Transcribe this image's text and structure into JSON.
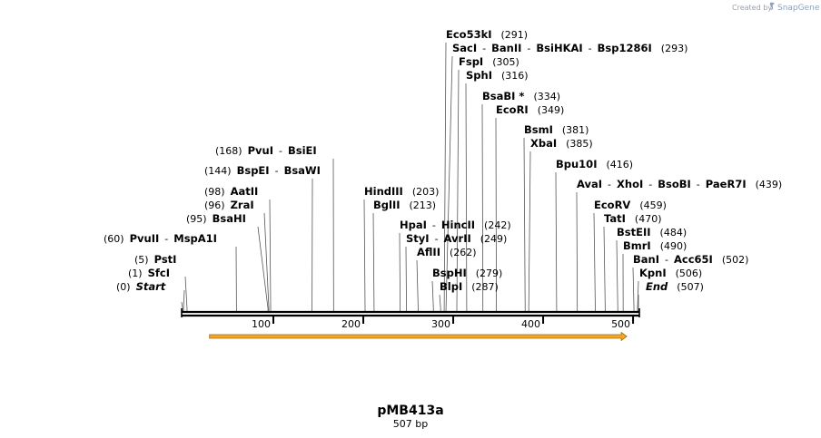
{
  "branding": {
    "created_by": "Created by",
    "product": "SnapGene"
  },
  "plasmid": {
    "name": "pMB413a",
    "length_label": "507 bp",
    "length": 507
  },
  "colors": {
    "feature_fill": "#f5a623",
    "feature_stroke": "#9c6a10",
    "backbone": "#000000"
  },
  "ruler": {
    "ticks": [
      100,
      200,
      300,
      400,
      500
    ]
  },
  "feature": {
    "start": 30,
    "end": 494,
    "direction": "forward"
  },
  "sites": [
    {
      "parts": [
        {
          "t": "(0)",
          "s": "pos"
        },
        {
          "t": "Start",
          "s": "emph"
        }
      ],
      "pos": 0
    },
    {
      "parts": [
        {
          "t": "(1)",
          "s": "pos"
        },
        {
          "t": "SfcI",
          "s": "enz"
        }
      ],
      "pos": 1
    },
    {
      "parts": [
        {
          "t": "(5)",
          "s": "pos"
        },
        {
          "t": "PstI",
          "s": "enz"
        }
      ],
      "pos": 5
    },
    {
      "parts": [
        {
          "t": "(60)",
          "s": "pos"
        },
        {
          "t": "PvuII",
          "s": "enz"
        },
        {
          "t": "-",
          "s": "pos"
        },
        {
          "t": "MspA1I",
          "s": "enz"
        }
      ],
      "pos": 60
    },
    {
      "parts": [
        {
          "t": "(95)",
          "s": "pos"
        },
        {
          "t": "BsaHI",
          "s": "enz"
        }
      ],
      "pos": 95
    },
    {
      "parts": [
        {
          "t": "(96)",
          "s": "pos"
        },
        {
          "t": "ZraI",
          "s": "enz"
        }
      ],
      "pos": 96
    },
    {
      "parts": [
        {
          "t": "(98)",
          "s": "pos"
        },
        {
          "t": "AatII",
          "s": "enz"
        }
      ],
      "pos": 98
    },
    {
      "parts": [
        {
          "t": "(144)",
          "s": "pos"
        },
        {
          "t": "BspEI",
          "s": "enz"
        },
        {
          "t": "-",
          "s": "pos"
        },
        {
          "t": "BsaWI",
          "s": "enz"
        }
      ],
      "pos": 144
    },
    {
      "parts": [
        {
          "t": "(168)",
          "s": "pos"
        },
        {
          "t": "PvuI",
          "s": "enz"
        },
        {
          "t": "-",
          "s": "pos"
        },
        {
          "t": "BsiEI",
          "s": "enz"
        }
      ],
      "pos": 168
    },
    {
      "parts": [
        {
          "t": "HindIII",
          "s": "enz"
        },
        {
          "t": "(203)",
          "s": "pos"
        }
      ],
      "pos": 203
    },
    {
      "parts": [
        {
          "t": "BglII",
          "s": "enz"
        },
        {
          "t": "(213)",
          "s": "pos"
        }
      ],
      "pos": 213
    },
    {
      "parts": [
        {
          "t": "HpaI",
          "s": "enz"
        },
        {
          "t": "-",
          "s": "pos"
        },
        {
          "t": "HincII",
          "s": "enz"
        },
        {
          "t": "(242)",
          "s": "pos"
        }
      ],
      "pos": 242
    },
    {
      "parts": [
        {
          "t": "StyI",
          "s": "enz"
        },
        {
          "t": "-",
          "s": "pos"
        },
        {
          "t": "AvrII",
          "s": "enz"
        },
        {
          "t": "(249)",
          "s": "pos"
        }
      ],
      "pos": 249
    },
    {
      "parts": [
        {
          "t": "AflII",
          "s": "enz"
        },
        {
          "t": "(262)",
          "s": "pos"
        }
      ],
      "pos": 262
    },
    {
      "parts": [
        {
          "t": "BspHI",
          "s": "enz"
        },
        {
          "t": "(279)",
          "s": "pos"
        }
      ],
      "pos": 279
    },
    {
      "parts": [
        {
          "t": "BlpI",
          "s": "enz"
        },
        {
          "t": "(287)",
          "s": "pos"
        }
      ],
      "pos": 287
    },
    {
      "parts": [
        {
          "t": "Eco53kI",
          "s": "enz"
        },
        {
          "t": "(291)",
          "s": "pos"
        }
      ],
      "pos": 291
    },
    {
      "parts": [
        {
          "t": "SacI",
          "s": "enz"
        },
        {
          "t": "-",
          "s": "pos"
        },
        {
          "t": "BanII",
          "s": "enz"
        },
        {
          "t": "-",
          "s": "pos"
        },
        {
          "t": "BsiHKAI",
          "s": "enz"
        },
        {
          "t": "-",
          "s": "pos"
        },
        {
          "t": "Bsp1286I",
          "s": "enz"
        },
        {
          "t": "(293)",
          "s": "pos"
        }
      ],
      "pos": 293
    },
    {
      "parts": [
        {
          "t": "FspI",
          "s": "enz"
        },
        {
          "t": "(305)",
          "s": "pos"
        }
      ],
      "pos": 305
    },
    {
      "parts": [
        {
          "t": "SphI",
          "s": "enz"
        },
        {
          "t": "(316)",
          "s": "pos"
        }
      ],
      "pos": 316
    },
    {
      "parts": [
        {
          "t": "BsaBI *",
          "s": "enz"
        },
        {
          "t": "(334)",
          "s": "pos"
        }
      ],
      "pos": 334
    },
    {
      "parts": [
        {
          "t": "EcoRI",
          "s": "enz"
        },
        {
          "t": "(349)",
          "s": "pos"
        }
      ],
      "pos": 349
    },
    {
      "parts": [
        {
          "t": "BsmI",
          "s": "enz"
        },
        {
          "t": "(381)",
          "s": "pos"
        }
      ],
      "pos": 381
    },
    {
      "parts": [
        {
          "t": "XbaI",
          "s": "enz"
        },
        {
          "t": "(385)",
          "s": "pos"
        }
      ],
      "pos": 385
    },
    {
      "parts": [
        {
          "t": "Bpu10I",
          "s": "enz"
        },
        {
          "t": "(416)",
          "s": "pos"
        }
      ],
      "pos": 416
    },
    {
      "parts": [
        {
          "t": "AvaI",
          "s": "enz"
        },
        {
          "t": "-",
          "s": "pos"
        },
        {
          "t": "XhoI",
          "s": "enz"
        },
        {
          "t": "-",
          "s": "pos"
        },
        {
          "t": "BsoBI",
          "s": "enz"
        },
        {
          "t": "-",
          "s": "pos"
        },
        {
          "t": "PaeR7I",
          "s": "enz"
        },
        {
          "t": "(439)",
          "s": "pos"
        }
      ],
      "pos": 439
    },
    {
      "parts": [
        {
          "t": "EcoRV",
          "s": "enz"
        },
        {
          "t": "(459)",
          "s": "pos"
        }
      ],
      "pos": 459
    },
    {
      "parts": [
        {
          "t": "TatI",
          "s": "enz"
        },
        {
          "t": "(470)",
          "s": "pos"
        }
      ],
      "pos": 470
    },
    {
      "parts": [
        {
          "t": "BstEII",
          "s": "enz"
        },
        {
          "t": "(484)",
          "s": "pos"
        }
      ],
      "pos": 484
    },
    {
      "parts": [
        {
          "t": "BmrI",
          "s": "enz"
        },
        {
          "t": "(490)",
          "s": "pos"
        }
      ],
      "pos": 490
    },
    {
      "parts": [
        {
          "t": "BanI",
          "s": "enz"
        },
        {
          "t": "-",
          "s": "pos"
        },
        {
          "t": "Acc65I",
          "s": "enz"
        },
        {
          "t": "(502)",
          "s": "pos"
        }
      ],
      "pos": 502
    },
    {
      "parts": [
        {
          "t": "KpnI",
          "s": "enz"
        },
        {
          "t": "(506)",
          "s": "pos"
        }
      ],
      "pos": 506
    },
    {
      "parts": [
        {
          "t": "End",
          "s": "emph"
        },
        {
          "t": "(507)",
          "s": "pos"
        }
      ],
      "pos": 507
    }
  ]
}
